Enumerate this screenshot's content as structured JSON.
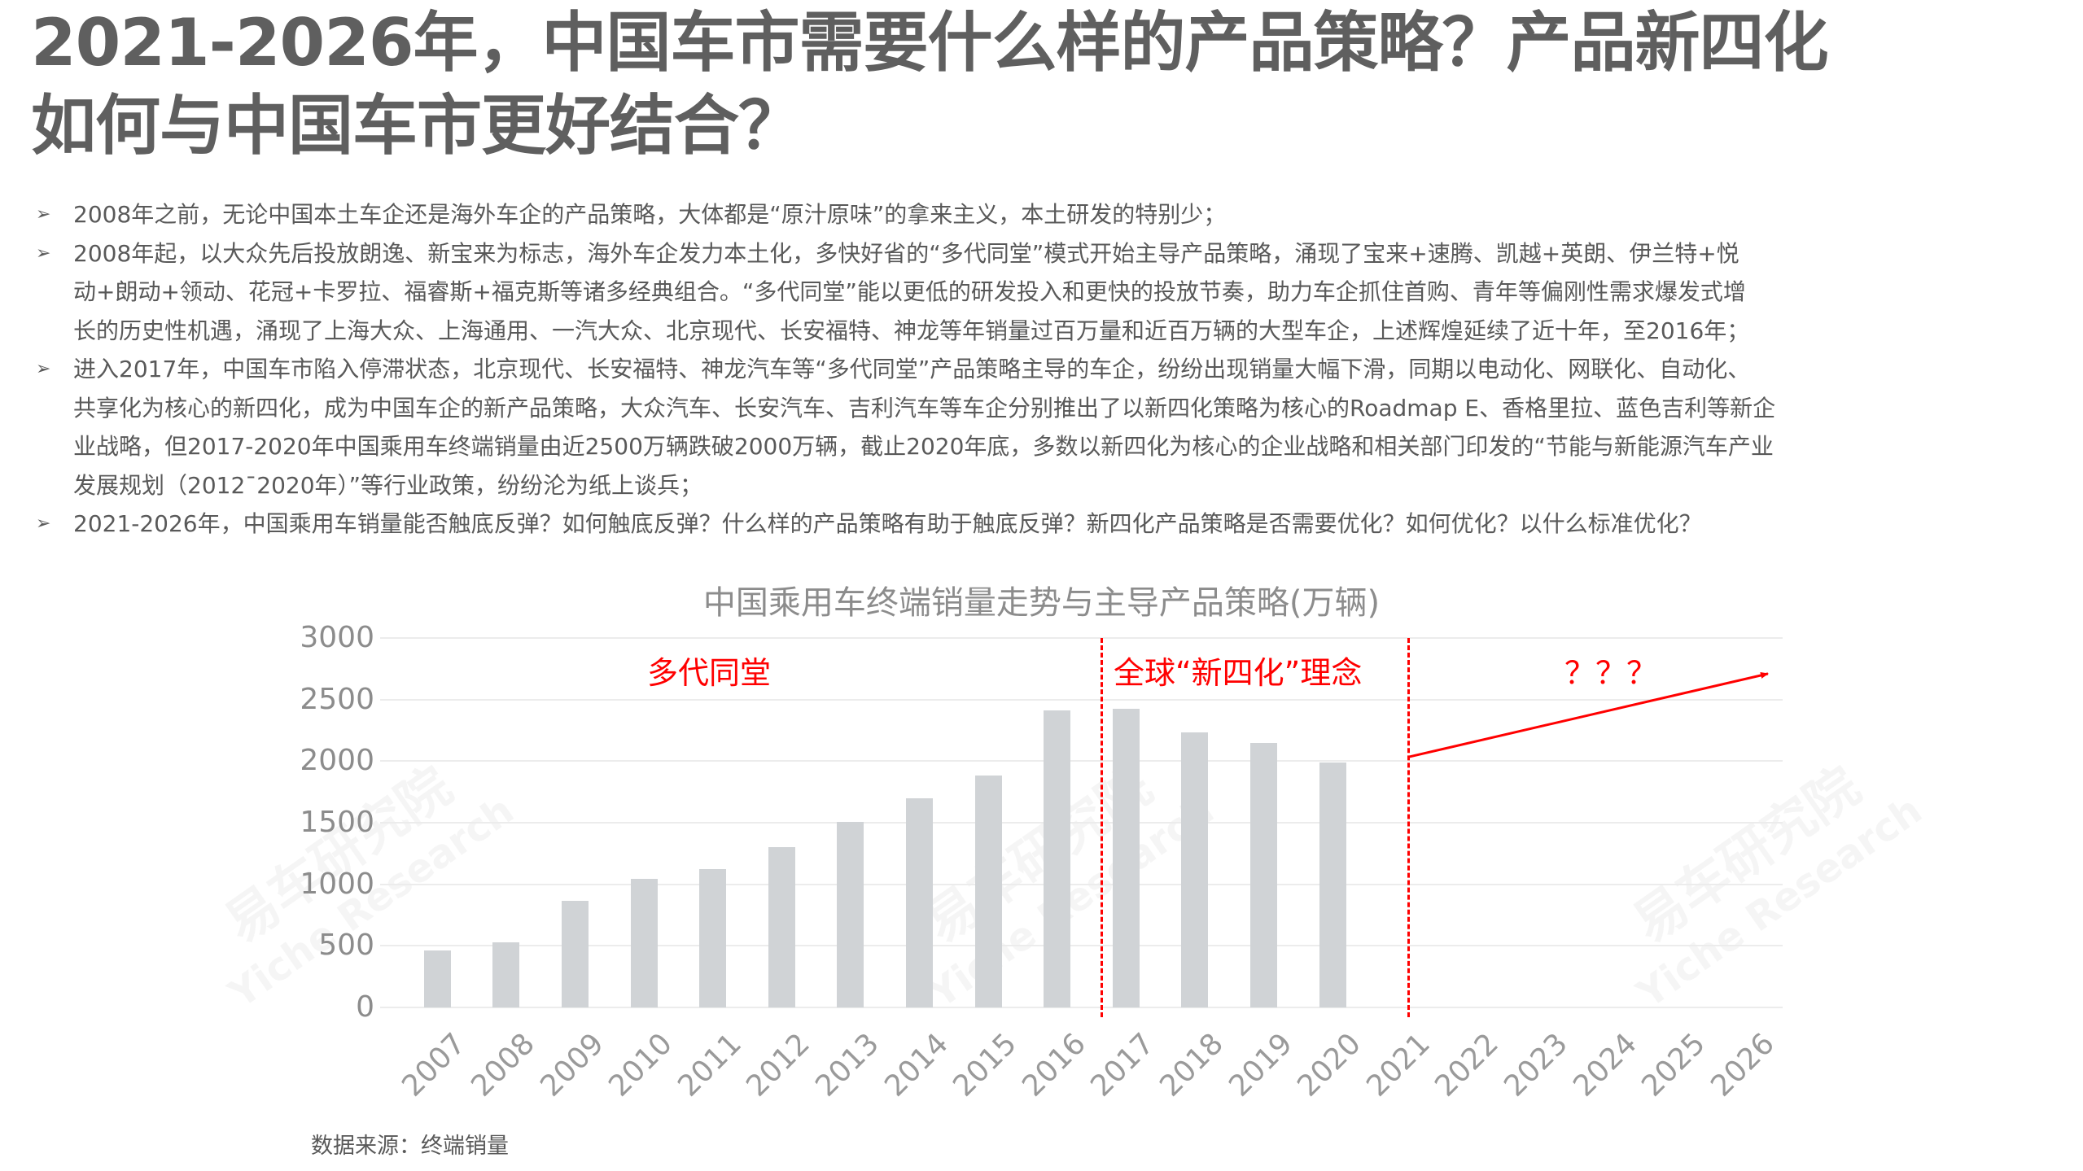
{
  "title": {
    "line1": "2021-2026年，中国车市需要什么样的产品策略？产品新四化",
    "line2": "如何与中国车市更好结合？"
  },
  "bullets": [
    {
      "marker": "➢",
      "lines": [
        "2008年之前，无论中国本土车企还是海外车企的产品策略，大体都是“原汁原味”的拿来主义，本土研发的特别少；"
      ]
    },
    {
      "marker": "➢",
      "lines": [
        "2008年起，以大众先后投放朗逸、新宝来为标志，海外车企发力本土化，多快好省的“多代同堂”模式开始主导产品策略，涌现了宝来+速腾、凯越+英朗、伊兰特+悦",
        "动+朗动+领动、花冠+卡罗拉、福睿斯+福克斯等诸多经典组合。“多代同堂”能以更低的研发投入和更快的投放节奏，助力车企抓住首购、青年等偏刚性需求爆发式增",
        "长的历史性机遇，涌现了上海大众、上海通用、一汽大众、北京现代、长安福特、神龙等年销量过百万量和近百万辆的大型车企，上述辉煌延续了近十年，至2016年；"
      ]
    },
    {
      "marker": "➢",
      "lines": [
        "进入2017年，中国车市陷入停滞状态，北京现代、长安福特、神龙汽车等“多代同堂”产品策略主导的车企，纷纷出现销量大幅下滑，同期以电动化、网联化、自动化、",
        "共享化为核心的新四化，成为中国车企的新产品策略，大众汽车、长安汽车、吉利汽车等车企分别推出了以新四化策略为核心的Roadmap E、香格里拉、蓝色吉利等新企",
        "业战略，但2017-2020年中国乘用车终端销量由近2500万辆跌破2000万辆，截止2020年底，多数以新四化为核心的企业战略和相关部门印发的“节能与新能源汽车产业",
        "发展规划（2012ˉ2020年）”等行业政策，纷纷沦为纸上谈兵；"
      ]
    },
    {
      "marker": "➢",
      "lines": [
        "2021-2026年，中国乘用车销量能否触底反弹？如何触底反弹？什么样的产品策略有助于触底反弹？新四化产品策略是否需要优化？如何优化？以什么标准优化？"
      ]
    }
  ],
  "chart": {
    "title": "中国乘用车终端销量走势与主导产品策略(万辆)",
    "phase_labels": [
      "多代同堂",
      "全球“新四化”理念",
      "？？？"
    ],
    "source": "数据来源：终端销量",
    "watermark_cn": "易车研究院",
    "watermark_en": "Yiche Research",
    "colors": {
      "bar": "#d0d3d6",
      "accent": "#ff0000",
      "grid": "#ececec",
      "axis_text": "#8c8c8c"
    }
  },
  "chart_data": {
    "type": "bar",
    "title": "中国乘用车终端销量走势与主导产品策略(万辆)",
    "xlabel": "",
    "ylabel": "万辆",
    "ylim": [
      0,
      3000
    ],
    "yticks": [
      0,
      500,
      1000,
      1500,
      2000,
      2500,
      3000
    ],
    "grid": true,
    "legend": "none",
    "categories": [
      "2007",
      "2008",
      "2009",
      "2010",
      "2011",
      "2012",
      "2013",
      "2014",
      "2015",
      "2016",
      "2017",
      "2018",
      "2019",
      "2020",
      "2021",
      "2022",
      "2023",
      "2024",
      "2025",
      "2026"
    ],
    "series": [
      {
        "name": "中国乘用车终端销量",
        "values": [
          465,
          530,
          867,
          1046,
          1121,
          1303,
          1509,
          1698,
          1884,
          2411,
          2425,
          2232,
          2150,
          1988,
          null,
          null,
          null,
          null,
          null,
          null
        ]
      }
    ],
    "annotations": [
      {
        "type": "region_label",
        "text": "多代同堂",
        "span": [
          "2007",
          "2016"
        ]
      },
      {
        "type": "region_label",
        "text": "全球“新四化”理念",
        "span": [
          "2017",
          "2020"
        ]
      },
      {
        "type": "region_label",
        "text": "？？？",
        "span": [
          "2021",
          "2026"
        ]
      },
      {
        "type": "vline_dashed",
        "between": [
          "2016",
          "2017"
        ]
      },
      {
        "type": "vline_dashed",
        "at": "2021"
      },
      {
        "type": "arrow",
        "from": {
          "x": "2021",
          "y": 2035
        },
        "to": {
          "x": "2026",
          "y": 2710
        },
        "color": "#ff0000"
      }
    ],
    "source_note": "数据来源：终端销量"
  }
}
